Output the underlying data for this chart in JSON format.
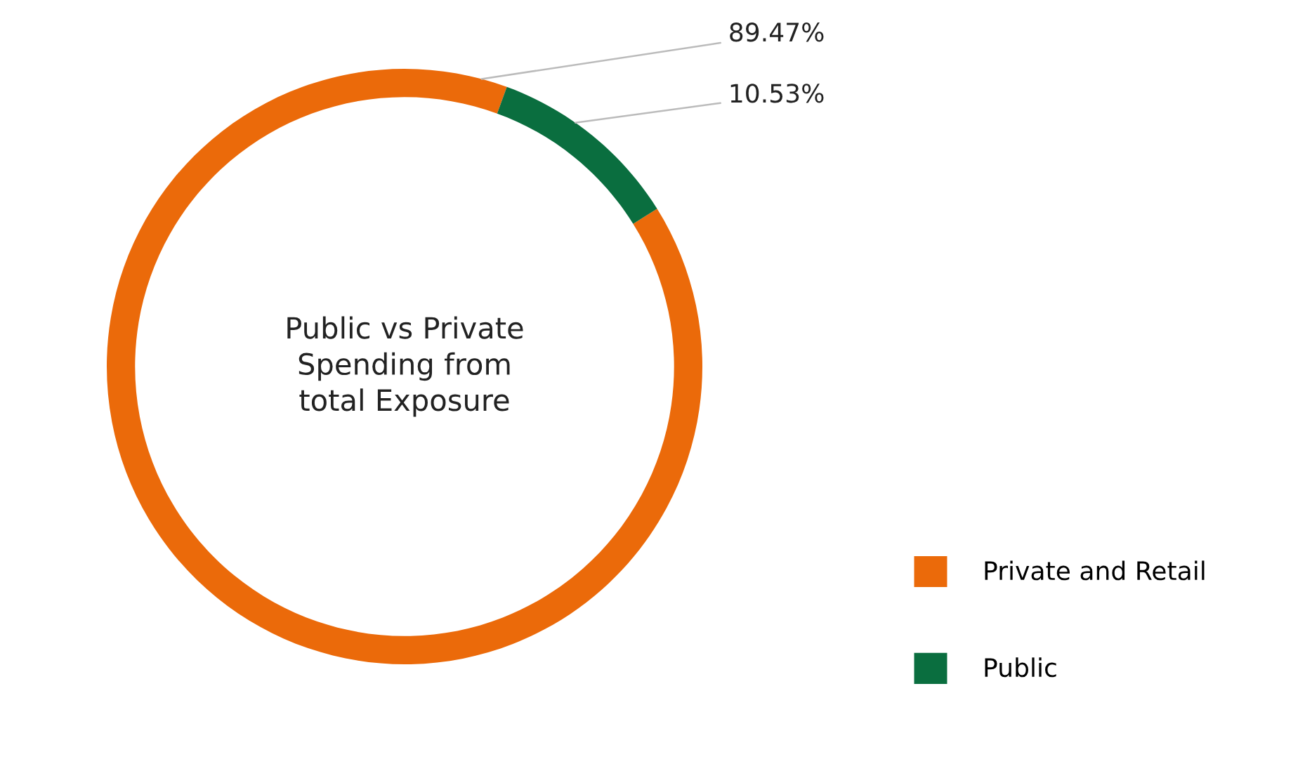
{
  "chart_data": {
    "type": "donut",
    "title": "Public vs Private Spending from total Exposure",
    "categories": [
      "Private and Retail",
      "Public"
    ],
    "values": [
      89.47,
      10.53
    ],
    "colors": [
      "#eb6a0a",
      "#0a6e3f"
    ],
    "value_labels": [
      "89.47%",
      "10.53%"
    ],
    "legend": "bottom right"
  }
}
